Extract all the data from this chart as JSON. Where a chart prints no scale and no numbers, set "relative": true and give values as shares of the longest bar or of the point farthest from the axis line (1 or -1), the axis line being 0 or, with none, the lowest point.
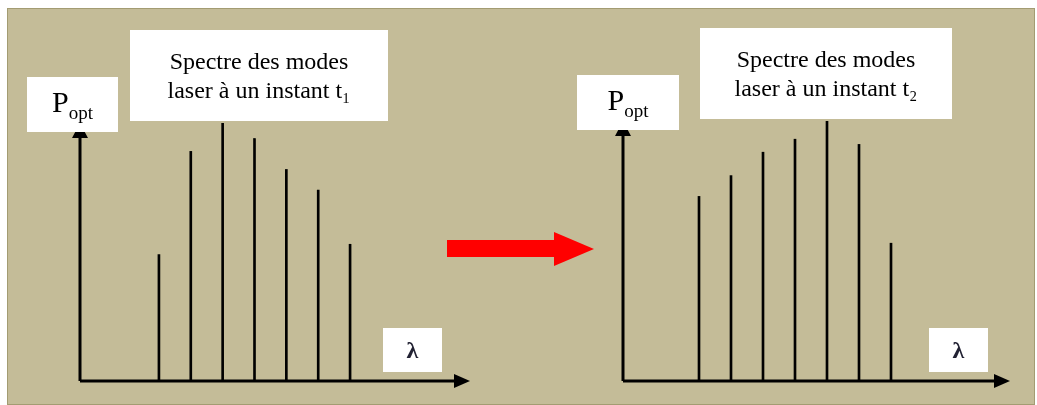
{
  "chart_data": [
    {
      "type": "bar",
      "title": "Spectre des modes laser à un instant t₁",
      "xlabel": "λ",
      "ylabel": "P$_{opt}$",
      "relative": true,
      "color": "#000000",
      "categories": [
        null,
        null,
        null,
        null,
        null,
        null,
        null
      ],
      "values": [
        0.49,
        0.89,
        1,
        0.94,
        0.82,
        0.74,
        0.53
      ]
    },
    {
      "type": "bar",
      "title": "Spectre des modes laser à un instant t₂",
      "xlabel": "λ",
      "ylabel": "P$_{opt}$",
      "relative": true,
      "color": "#000000",
      "categories": [
        null,
        null,
        null,
        null,
        null,
        null,
        null
      ],
      "values": [
        0.71,
        0.79,
        0.88,
        0.93,
        1,
        0.91,
        0.53
      ]
    }
  ]
}
